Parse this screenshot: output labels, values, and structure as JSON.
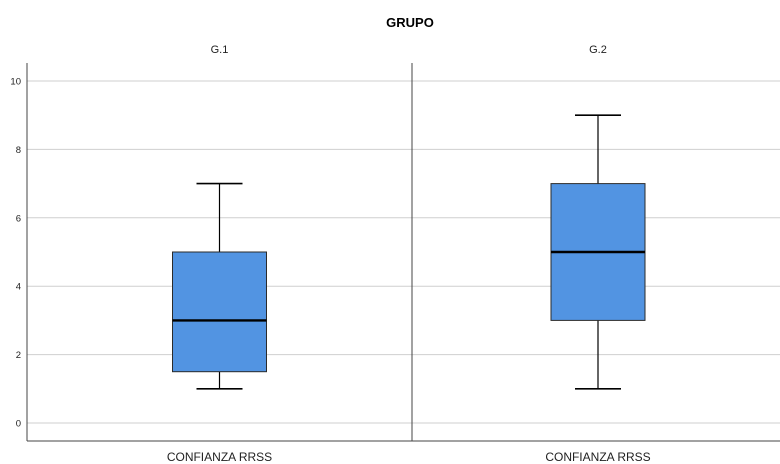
{
  "chart_data": {
    "type": "boxplot",
    "title": "GRUPO",
    "ylim": [
      0,
      10
    ],
    "yticks": [
      0,
      2,
      4,
      6,
      8,
      10
    ],
    "grid": true,
    "colors": {
      "box_fill": "#5294E2",
      "box_stroke": "#2b2b2b",
      "median": "#000000",
      "grid": "#cfcfcf",
      "axis": "#444444"
    },
    "panels": [
      {
        "label": "G.1",
        "category": "CONFIANZA RRSS",
        "min": 1,
        "q1": 1.5,
        "median": 3,
        "q3": 5,
        "max": 7
      },
      {
        "label": "G.2",
        "category": "CONFIANZA RRSS",
        "min": 1,
        "q1": 3,
        "median": 5,
        "q3": 7,
        "max": 9
      }
    ]
  }
}
